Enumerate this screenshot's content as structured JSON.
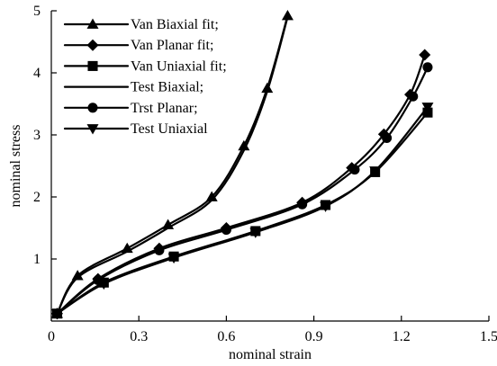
{
  "chart_data": {
    "type": "line",
    "title": "",
    "xlabel": "nominal strain",
    "ylabel": "nominal stress",
    "xlim": [
      0,
      1.5
    ],
    "ylim": [
      0,
      5
    ],
    "xticks": [
      0,
      0.3,
      0.6,
      0.9,
      1.2,
      1.5
    ],
    "yticks": [
      1,
      2,
      3,
      4,
      5
    ],
    "xtick_labels": [
      "0",
      "0.3",
      "0.6",
      "0.9",
      "1.2",
      "1.5"
    ],
    "ytick_labels": [
      "1",
      "2",
      "3",
      "4",
      "5"
    ],
    "grid": false,
    "legend_position": "top-left",
    "series": [
      {
        "name": "Van Biaxial fit;",
        "marker": "triangle-up",
        "x": [
          0.02,
          0.09,
          0.26,
          0.4,
          0.55,
          0.66,
          0.74,
          0.81
        ],
        "y": [
          0.12,
          0.73,
          1.17,
          1.55,
          2.0,
          2.82,
          3.75,
          4.92
        ]
      },
      {
        "name": "Van Planar fit;",
        "marker": "diamond",
        "x": [
          0.02,
          0.16,
          0.37,
          0.6,
          0.86,
          1.03,
          1.14,
          1.23,
          1.28
        ],
        "y": [
          0.12,
          0.68,
          1.17,
          1.5,
          1.91,
          2.47,
          3.01,
          3.65,
          4.29
        ]
      },
      {
        "name": "Van Uniaxial fit;",
        "marker": "square",
        "x": [
          0.02,
          0.18,
          0.42,
          0.7,
          0.94,
          1.11,
          1.29
        ],
        "y": [
          0.12,
          0.62,
          1.04,
          1.45,
          1.87,
          2.4,
          3.36
        ]
      },
      {
        "name": "Test Biaxial;",
        "marker": "none",
        "x": [
          0.02,
          0.09,
          0.26,
          0.4,
          0.55,
          0.66,
          0.74,
          0.81
        ],
        "y": [
          0.12,
          0.7,
          1.12,
          1.5,
          1.95,
          2.75,
          3.7,
          4.9
        ]
      },
      {
        "name": "Trst Planar;",
        "marker": "circle",
        "x": [
          0.02,
          0.16,
          0.37,
          0.6,
          0.86,
          1.04,
          1.15,
          1.24,
          1.29
        ],
        "y": [
          0.12,
          0.66,
          1.14,
          1.47,
          1.88,
          2.44,
          2.95,
          3.62,
          4.09
        ]
      },
      {
        "name": "Test Uniaxial",
        "marker": "triangle-down",
        "x": [
          0.02,
          0.18,
          0.42,
          0.7,
          0.94,
          1.11,
          1.29
        ],
        "y": [
          0.12,
          0.6,
          1.02,
          1.43,
          1.85,
          2.42,
          3.45
        ]
      }
    ]
  }
}
